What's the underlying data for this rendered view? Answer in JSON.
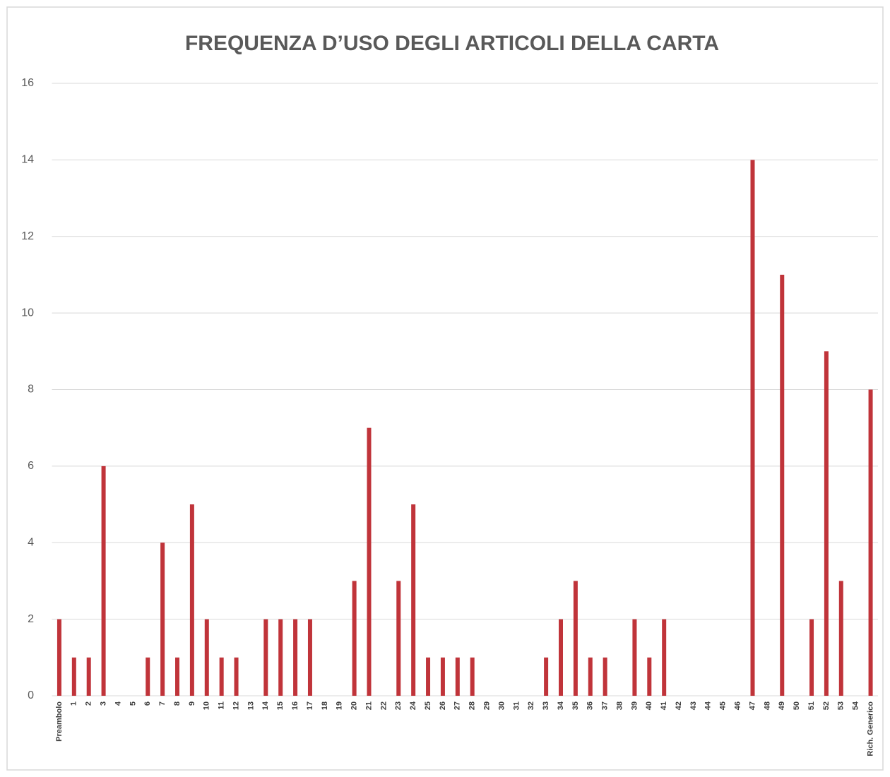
{
  "chart_data": {
    "type": "bar",
    "title": "FREQUENZA D’USO DEGLI ARTICOLI DELLA CARTA",
    "categories": [
      "Preambolo",
      "1",
      "2",
      "3",
      "4",
      "5",
      "6",
      "7",
      "8",
      "9",
      "10",
      "11",
      "12",
      "13",
      "14",
      "15",
      "16",
      "17",
      "18",
      "19",
      "20",
      "21",
      "22",
      "23",
      "24",
      "25",
      "26",
      "27",
      "28",
      "29",
      "30",
      "31",
      "32",
      "33",
      "34",
      "35",
      "36",
      "37",
      "38",
      "39",
      "40",
      "41",
      "42",
      "43",
      "44",
      "45",
      "46",
      "47",
      "48",
      "49",
      "50",
      "51",
      "52",
      "53",
      "54",
      "Rich. Generico"
    ],
    "values": [
      2,
      1,
      1,
      6,
      0,
      0,
      1,
      4,
      1,
      5,
      2,
      1,
      1,
      0,
      2,
      2,
      2,
      2,
      0,
      0,
      3,
      7,
      0,
      3,
      5,
      1,
      1,
      1,
      1,
      0,
      0,
      0,
      0,
      1,
      2,
      3,
      1,
      1,
      0,
      2,
      1,
      2,
      0,
      0,
      0,
      0,
      0,
      14,
      0,
      11,
      0,
      2,
      9,
      3,
      0,
      8
    ],
    "color": "#c0343a",
    "ylim": [
      0,
      16
    ],
    "yticks": [
      0,
      2,
      4,
      6,
      8,
      10,
      12,
      14,
      16
    ],
    "grid": true
  }
}
